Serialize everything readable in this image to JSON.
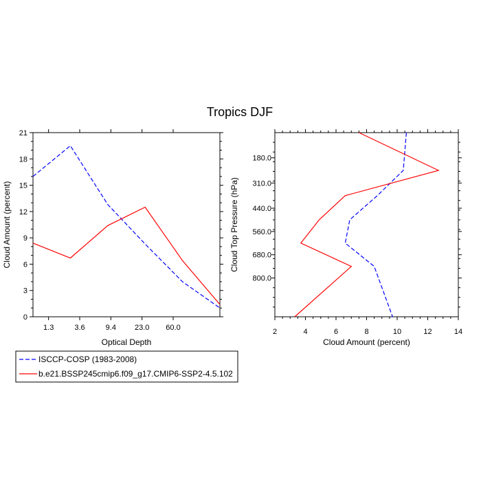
{
  "title": "Tropics DJF",
  "colors": {
    "obs": "#0000ff",
    "model": "#ff0000",
    "frame": "#000000"
  },
  "legend": [
    {
      "label": "ISCCP-COSP (1983-2008)",
      "style": "dashed",
      "color": "#0000ff"
    },
    {
      "label": "b.e21.BSSP245cmip6.f09_g17.CMIP6-SSP2-4.5.102",
      "style": "solid",
      "color": "#ff0000"
    }
  ],
  "chart_data": [
    {
      "type": "line",
      "xlabel": "Optical Depth",
      "ylabel": "Cloud Amount (percent)",
      "x_tick_labels": [
        "1.3",
        "3.6",
        "9.4",
        "23.0",
        "60.0"
      ],
      "x_index": [
        0,
        1,
        2,
        3,
        4,
        5,
        6
      ],
      "xlim": [
        0,
        6
      ],
      "ylim": [
        0,
        21
      ],
      "y_ticks": [
        0,
        3,
        6,
        9,
        12,
        15,
        18,
        21
      ],
      "series": [
        {
          "name": "ISCCP-COSP (1983-2008)",
          "style": "dashed",
          "values": [
            16.0,
            19.5,
            12.8,
            8.3,
            4.0,
            1.0
          ]
        },
        {
          "name": "b.e21.BSSP245cmip6.f09_g17.CMIP6-SSP2-4.5.102",
          "style": "solid",
          "values": [
            8.4,
            6.7,
            10.4,
            12.5,
            6.4,
            1.4
          ]
        }
      ]
    },
    {
      "type": "line",
      "xlabel": "Cloud Amount (percent)",
      "ylabel": "Cloud Top Pressure (hPa)",
      "xlim": [
        2,
        14
      ],
      "x_ticks": [
        2,
        4,
        6,
        8,
        10,
        12,
        14
      ],
      "y_tick_labels": [
        "180.0",
        "310.0",
        "440.0",
        "560.0",
        "680.0",
        "800.0"
      ],
      "y_tick_values": [
        180,
        310,
        440,
        560,
        680,
        800
      ],
      "ylim": [
        1000,
        50
      ],
      "pressure_levels": [
        50,
        180,
        310,
        440,
        560,
        680,
        800,
        1000
      ],
      "series": [
        {
          "name": "ISCCP-COSP (1983-2008)",
          "style": "dashed",
          "pressure": [
            115,
            245,
            375,
            500,
            620,
            740,
            900
          ],
          "values": [
            10.6,
            10.4,
            8.7,
            6.9,
            6.6,
            8.5,
            9.7
          ]
        },
        {
          "name": "b.e21.BSSP245cmip6.f09_g17.CMIP6-SSP2-4.5.102",
          "style": "solid",
          "pressure": [
            115,
            245,
            375,
            500,
            620,
            740,
            900
          ],
          "values": [
            7.5,
            12.7,
            6.6,
            4.9,
            3.7,
            7.0,
            3.3
          ]
        }
      ]
    }
  ]
}
